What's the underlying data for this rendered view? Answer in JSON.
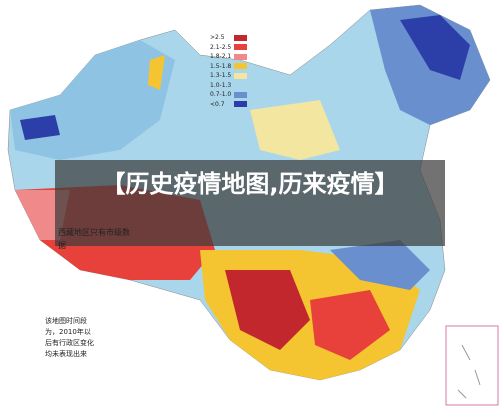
{
  "title": "【历史疫情地图,历来疫情】",
  "legend": {
    "items": [
      {
        "label": ">2.5",
        "color": "#c1272d"
      },
      {
        "label": "2.1-2.5",
        "color": "#e8403a"
      },
      {
        "label": "1.8-2.1",
        "color": "#f08a8a"
      },
      {
        "label": "1.5-1.8",
        "color": "#f5c431"
      },
      {
        "label": "1.3-1.5",
        "color": "#f3e6a0"
      },
      {
        "label": "1.0-1.3",
        "color": "#a9d6ea"
      },
      {
        "label": "0.7-1.0",
        "color": "#6a8fcf"
      },
      {
        "label": "<0.7",
        "color": "#2c3fa8"
      }
    ]
  },
  "notes": [
    "西藏地区只有市级数据",
    "该地图时间段为，2010年以后有行政区变化均未表现出来"
  ]
}
